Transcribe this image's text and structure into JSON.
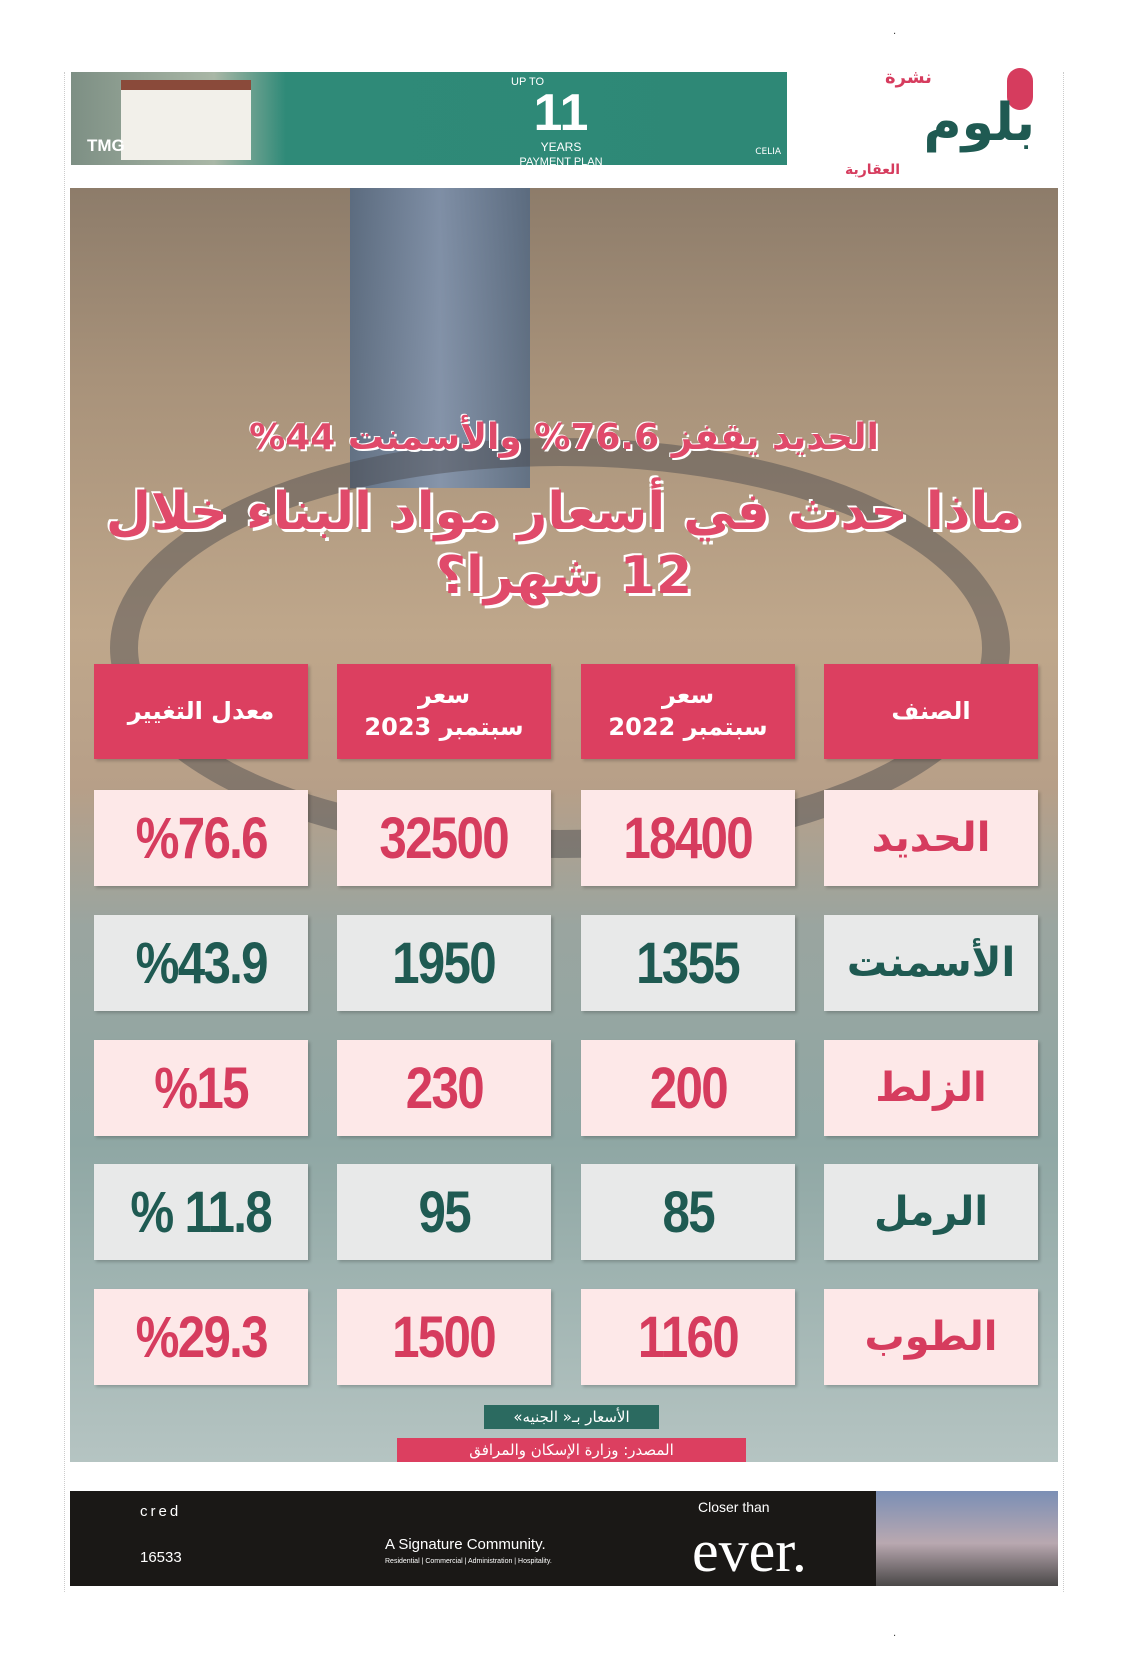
{
  "header": {
    "ad": {
      "brand": "TMG",
      "up_to": "UP TO",
      "number": "11",
      "years": "YEARS",
      "plan": "PAYMENT PLAN",
      "project": "CELIA"
    },
    "logo": {
      "name": "بلوم",
      "prefix": "نشرة",
      "suffix": "العقارية"
    }
  },
  "infographic": {
    "subtitle": "الحديد يقفز 76.6% والأسمنت 44%",
    "title": "ماذا حدث في أسعار مواد البناء خلال 12 شهرا؟",
    "columns": [
      {
        "line1": "الصنف",
        "line2": ""
      },
      {
        "line1": "سعر",
        "line2": "سبتمبر 2022"
      },
      {
        "line1": "سعر",
        "line2": "سبتمبر 2023"
      },
      {
        "line1": "معدل التغيير",
        "line2": ""
      }
    ],
    "rows": [
      {
        "item": "الحديد",
        "p2022": "18400",
        "p2023": "32500",
        "change": "%76.6"
      },
      {
        "item": "الأسمنت",
        "p2022": "1355",
        "p2023": "1950",
        "change": "%43.9"
      },
      {
        "item": "الزلط",
        "p2022": "200",
        "p2023": "230",
        "change": "%15"
      },
      {
        "item": "الرمل",
        "p2022": "85",
        "p2023": "95",
        "change": "% 11.8"
      },
      {
        "item": "الطوب",
        "p2022": "1160",
        "p2023": "1500",
        "change": "%29.3"
      }
    ],
    "currency_note": "الأسعار بـ« الجنيه»",
    "source": "المصدر: وزارة الإسكان والمرافق",
    "colors": {
      "accent": "#dc3f60",
      "teal": "#1f5a52",
      "pink_cell": "#fde8e8",
      "gray_cell": "#e8e9e9"
    }
  },
  "footer_ad": {
    "brand": "cred",
    "phone": "16533",
    "tagline": "A Signature Community.",
    "sectors": "Residential | Commercial | Administration | Hospitality.",
    "closer": "Closer than",
    "ever": "ever."
  }
}
